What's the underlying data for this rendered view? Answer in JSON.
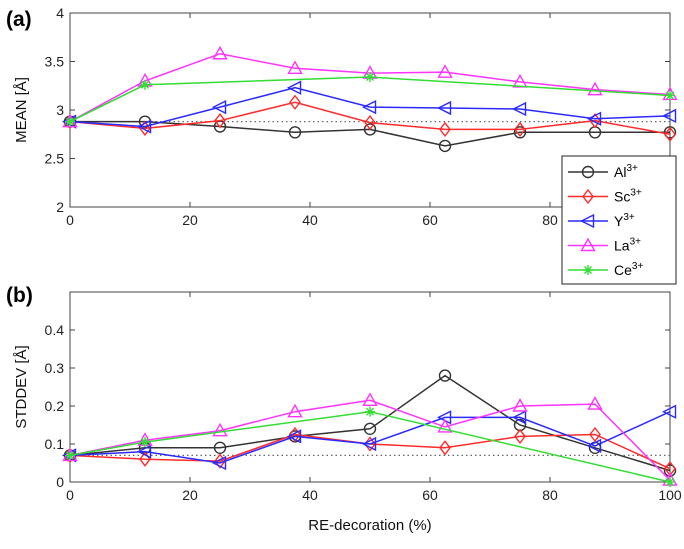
{
  "panel_labels": [
    "(a)",
    "(b)"
  ],
  "chart_data": [
    {
      "type": "line",
      "panel": "(a)",
      "xlabel": "",
      "ylabel": "MEAN [Å]",
      "xlim": [
        0,
        100
      ],
      "ylim": [
        2,
        4
      ],
      "xticks": [
        "0",
        "20",
        "40",
        "60",
        "80",
        ""
      ],
      "yticks": [
        "2",
        "2.5",
        "3",
        "3.5",
        "4"
      ],
      "reference_line": 2.88,
      "legend_position": "bottom-right",
      "series": [
        {
          "name": "Al",
          "sup": "3+",
          "color": "#333333",
          "marker": "circle",
          "x": [
            0,
            12.5,
            25,
            37.5,
            50,
            62.5,
            75,
            87.5,
            100
          ],
          "y": [
            2.88,
            2.88,
            2.83,
            2.77,
            2.8,
            2.63,
            2.77,
            2.77,
            2.77
          ]
        },
        {
          "name": "Sc",
          "sup": "3+",
          "color": "#ff2a2a",
          "marker": "diamond",
          "x": [
            0,
            12.5,
            25,
            37.5,
            50,
            62.5,
            75,
            87.5,
            100
          ],
          "y": [
            2.88,
            2.81,
            2.89,
            3.08,
            2.87,
            2.8,
            2.8,
            2.89,
            2.75
          ]
        },
        {
          "name": "Y",
          "sup": "3+",
          "color": "#2a2aff",
          "marker": "triangle-left",
          "x": [
            0,
            12.5,
            25,
            37.5,
            50,
            62.5,
            75,
            87.5,
            100
          ],
          "y": [
            2.88,
            2.83,
            3.03,
            3.23,
            3.03,
            3.02,
            3.01,
            2.91,
            2.94
          ]
        },
        {
          "name": "La",
          "sup": "3+",
          "color": "#ff33ff",
          "marker": "triangle-up",
          "x": [
            0,
            12.5,
            25,
            37.5,
            50,
            62.5,
            75,
            87.5,
            100
          ],
          "y": [
            2.88,
            3.3,
            3.58,
            3.43,
            3.38,
            3.39,
            3.29,
            3.21,
            3.16
          ]
        },
        {
          "name": "Ce",
          "sup": "3+",
          "color": "#33dd33",
          "marker": "asterisk",
          "x": [
            0,
            12.5,
            50,
            100
          ],
          "y": [
            2.88,
            3.26,
            3.34,
            3.15
          ]
        }
      ]
    },
    {
      "type": "line",
      "panel": "(b)",
      "xlabel": "RE-decoration (%)",
      "ylabel": "STDDEV [Å]",
      "xlim": [
        0,
        100
      ],
      "ylim": [
        0,
        0.5
      ],
      "xticks": [
        "0",
        "20",
        "40",
        "60",
        "80",
        "100"
      ],
      "yticks": [
        "0",
        "0.1",
        "0.2",
        "0.3",
        "0.4"
      ],
      "reference_line": 0.07,
      "series": [
        {
          "name": "Al",
          "color": "#333333",
          "marker": "circle",
          "x": [
            0,
            12.5,
            25,
            37.5,
            50,
            62.5,
            75,
            87.5,
            100
          ],
          "y": [
            0.07,
            0.09,
            0.09,
            0.12,
            0.14,
            0.28,
            0.15,
            0.09,
            0.03
          ]
        },
        {
          "name": "Sc",
          "color": "#ff2a2a",
          "marker": "diamond",
          "x": [
            0,
            12.5,
            25,
            37.5,
            50,
            62.5,
            75,
            87.5,
            100
          ],
          "y": [
            0.07,
            0.06,
            0.055,
            0.125,
            0.1,
            0.09,
            0.12,
            0.125,
            0.035
          ]
        },
        {
          "name": "Y",
          "color": "#2a2aff",
          "marker": "triangle-left",
          "x": [
            0,
            12.5,
            25,
            37.5,
            50,
            62.5,
            75,
            87.5,
            100
          ],
          "y": [
            0.07,
            0.08,
            0.05,
            0.12,
            0.1,
            0.17,
            0.17,
            0.095,
            0.185
          ]
        },
        {
          "name": "La",
          "color": "#ff33ff",
          "marker": "triangle-up",
          "x": [
            0,
            12.5,
            25,
            37.5,
            50,
            62.5,
            75,
            87.5,
            100
          ],
          "y": [
            0.07,
            0.11,
            0.135,
            0.185,
            0.215,
            0.145,
            0.2,
            0.205,
            0.005
          ]
        },
        {
          "name": "Ce",
          "color": "#33dd33",
          "marker": "asterisk",
          "x": [
            0,
            12.5,
            50,
            100
          ],
          "y": [
            0.07,
            0.105,
            0.185,
            0.0
          ]
        }
      ]
    }
  ]
}
